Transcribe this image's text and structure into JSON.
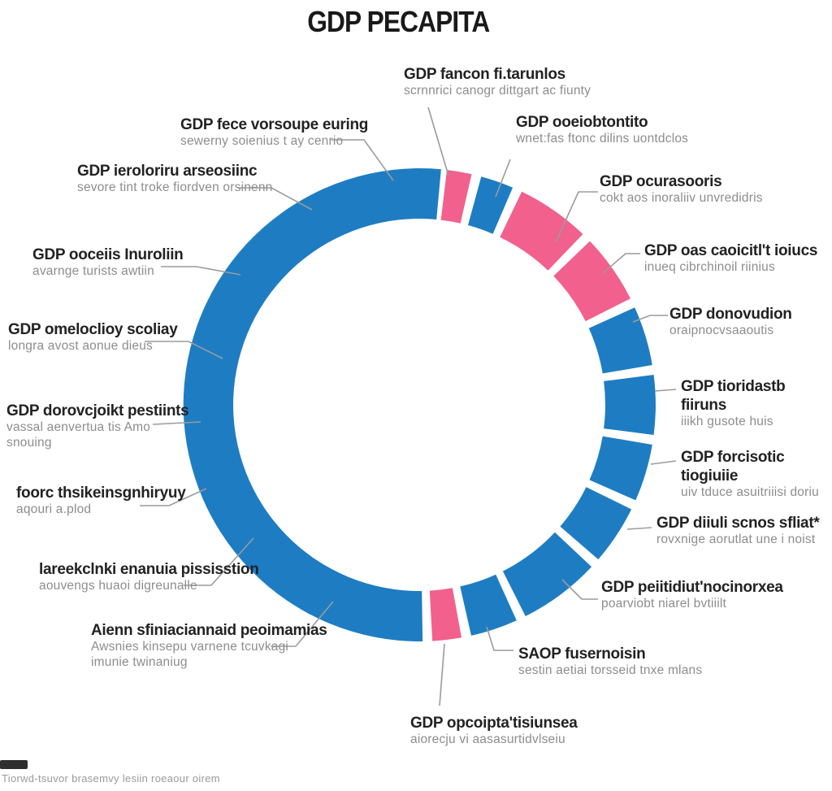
{
  "title": "GDP PECAPITA",
  "footnote": "Tiorwd-tsuvor brasemvy lesiin roeaour oirem",
  "labels": [
    {
      "title": "GDP fancon fi.tarunlos",
      "sub1": "scrnnrici canogr dittgart ac fiunty",
      "sub2": ""
    },
    {
      "title": "GDP fece vorsoupe euring",
      "sub1": "sewerny soienius t ay cenrio",
      "sub2": ""
    },
    {
      "title": "GDP ieroloriru arseosiinc",
      "sub1": "sevore tint troke fiordven orsinenn",
      "sub2": ""
    },
    {
      "title": "GDP ooceiis Inuroliin",
      "sub1": "avarnge turists awtiin",
      "sub2": ""
    },
    {
      "title": "GDP omeloclioy scoliay",
      "sub1": "longra avost aonue dieus",
      "sub2": ""
    },
    {
      "title": "GDP dorovcjoikt pestiints",
      "sub1": "vassal aenvertua tis Amo",
      "sub2": "snouing"
    },
    {
      "title": "foorc thsikeinsgnhiryuy",
      "sub1": "aqouri a.plod",
      "sub2": ""
    },
    {
      "title": "lareekclnki enanuia pississtion",
      "sub1": "aouvengs huaoi digreunalle",
      "sub2": ""
    },
    {
      "title": "Aienn sfiniaciannaid peoimamias",
      "sub1": "Awsnies kinsepu varnene tcuvkagi",
      "sub2": "imunie twinaniug"
    },
    {
      "title": "GDP opcoipta'tisiunsea",
      "sub1": "aiorecju vi aasasurtidvlseiu",
      "sub2": ""
    },
    {
      "title": "SAOP fusernoisin",
      "sub1": "sestin aetiai torsseid tnxe mlans",
      "sub2": ""
    },
    {
      "title": "GDP peiitidiut'nocinorxea",
      "sub1": "poarviobt niarel bvtiiilt",
      "sub2": ""
    },
    {
      "title": "GDP diiuli scnos sfliat*",
      "sub1": "rovxnige aorutlat une i noist",
      "sub2": ""
    },
    {
      "title": "GDP forcisotic tiogiuiie",
      "sub1": "uiv tduce asuitriiisi doriu",
      "sub2": ""
    },
    {
      "title": "GDP tioridastb fiiruns",
      "sub1": "iiikh gusote huis",
      "sub2": ""
    },
    {
      "title": "GDP donovudion",
      "sub1": "oraipnocvsaaoutis",
      "sub2": ""
    },
    {
      "title": "GDP oas caoicitl't ioiucs",
      "sub1": "inueq cibrchinoil riinius",
      "sub2": ""
    },
    {
      "title": "GDP ocurasooris",
      "sub1": "cokt aos inoraliiv unvredidris",
      "sub2": ""
    },
    {
      "title": "GDP ooeiobtontito",
      "sub1": "wnet:fas ftonc dilins uontdclos",
      "sub2": ""
    }
  ],
  "chart_data": {
    "type": "pie",
    "variant": "donut",
    "title": "GDP PECAPITA",
    "legend": "none",
    "colors": {
      "blue": "#1e7dc2",
      "pink": "#f2608d",
      "background": "#ffffff"
    },
    "angle_reference": "degrees clockwise from 12 o'clock",
    "segments": [
      {
        "name": "segment-top-sliver",
        "start_deg": 6,
        "end_deg": 13.5,
        "color": "pink",
        "share_pct": 2.1
      },
      {
        "name": "segment-upper-right-1",
        "start_deg": 14.5,
        "end_deg": 24,
        "color": "blue",
        "share_pct": 2.6
      },
      {
        "name": "segment-pink-wedge-a",
        "start_deg": 25,
        "end_deg": 44.5,
        "color": "pink",
        "share_pct": 5.4
      },
      {
        "name": "segment-pink-wedge-b",
        "start_deg": 45.5,
        "end_deg": 64,
        "color": "pink",
        "share_pct": 5.1
      },
      {
        "name": "segment-right-1",
        "start_deg": 65,
        "end_deg": 81,
        "color": "blue",
        "share_pct": 4.4
      },
      {
        "name": "segment-right-2",
        "start_deg": 82,
        "end_deg": 98,
        "color": "blue",
        "share_pct": 4.4
      },
      {
        "name": "segment-right-3",
        "start_deg": 99,
        "end_deg": 114.5,
        "color": "blue",
        "share_pct": 4.3
      },
      {
        "name": "segment-lower-right-1",
        "start_deg": 115.5,
        "end_deg": 131.5,
        "color": "blue",
        "share_pct": 4.4
      },
      {
        "name": "segment-lower-right-2",
        "start_deg": 132.5,
        "end_deg": 154,
        "color": "blue",
        "share_pct": 6.0
      },
      {
        "name": "segment-bottom-right",
        "start_deg": 155,
        "end_deg": 168,
        "color": "blue",
        "share_pct": 3.6
      },
      {
        "name": "segment-bottom-sliver",
        "start_deg": 169,
        "end_deg": 177.5,
        "color": "pink",
        "share_pct": 2.4
      },
      {
        "name": "segment-left-large",
        "start_deg": 178.5,
        "end_deg": 366,
        "color": "blue",
        "share_pct": 52.1
      }
    ],
    "geometry_note": "white gaps between segments; hollow white center"
  }
}
